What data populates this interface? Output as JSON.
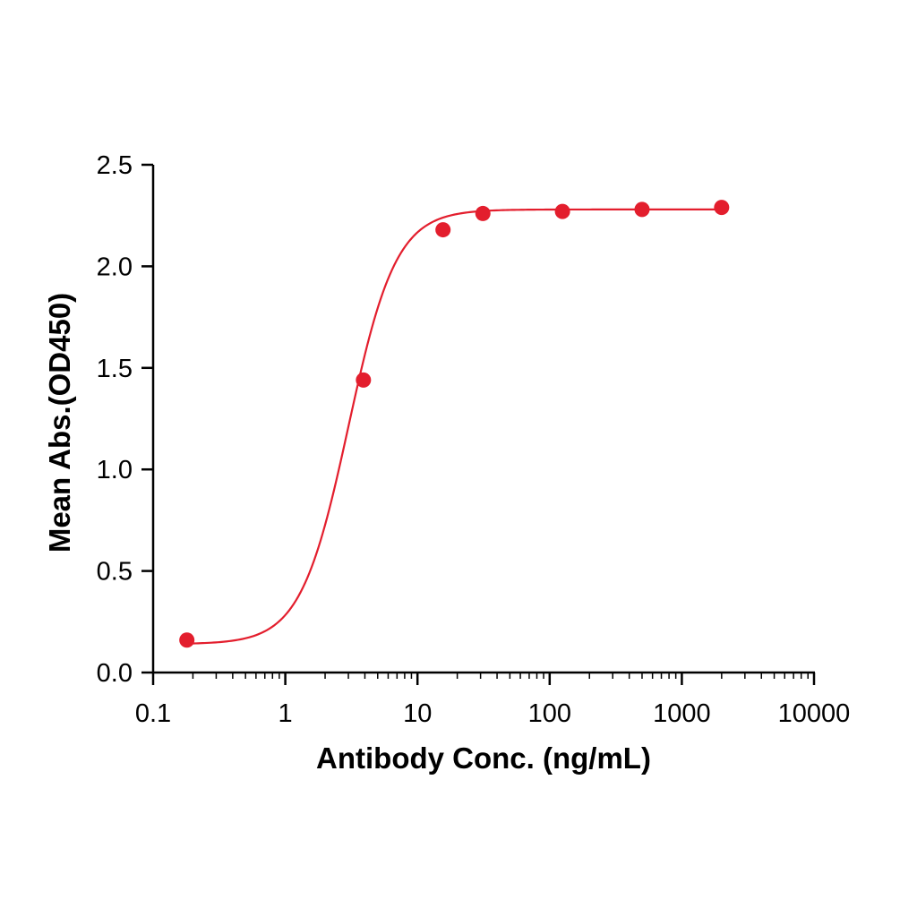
{
  "chart_data": {
    "type": "scatter",
    "title": "",
    "xlabel": "Antibody Conc. (ng/mL)",
    "ylabel": "Mean Abs.(OD450)",
    "x_scale": "log",
    "xlim": [
      0.1,
      10000
    ],
    "ylim": [
      0,
      2.5
    ],
    "x_ticks": [
      0.1,
      1,
      10,
      100,
      1000,
      10000
    ],
    "x_tick_labels": [
      "0.1",
      "1",
      "10",
      "100",
      "1000",
      "10000"
    ],
    "y_ticks": [
      0,
      0.5,
      1.0,
      1.5,
      2.0,
      2.5
    ],
    "y_tick_labels": [
      "0.0",
      "0.5",
      "1.0",
      "1.5",
      "2.0",
      "2.5"
    ],
    "grid": false,
    "legend": "none",
    "series": [
      {
        "color": "#e31e2d",
        "marker": "circle",
        "fit": "4-parameter logistic curve",
        "x": [
          0.18,
          3.9,
          15.6,
          31.25,
          125,
          500,
          2000
        ],
        "y": [
          0.16,
          1.44,
          2.18,
          2.26,
          2.27,
          2.28,
          2.29
        ]
      }
    ],
    "fit_params": {
      "bottom": 0.14,
      "top": 2.28,
      "ec50": 3.0,
      "hill": 2.4
    }
  }
}
